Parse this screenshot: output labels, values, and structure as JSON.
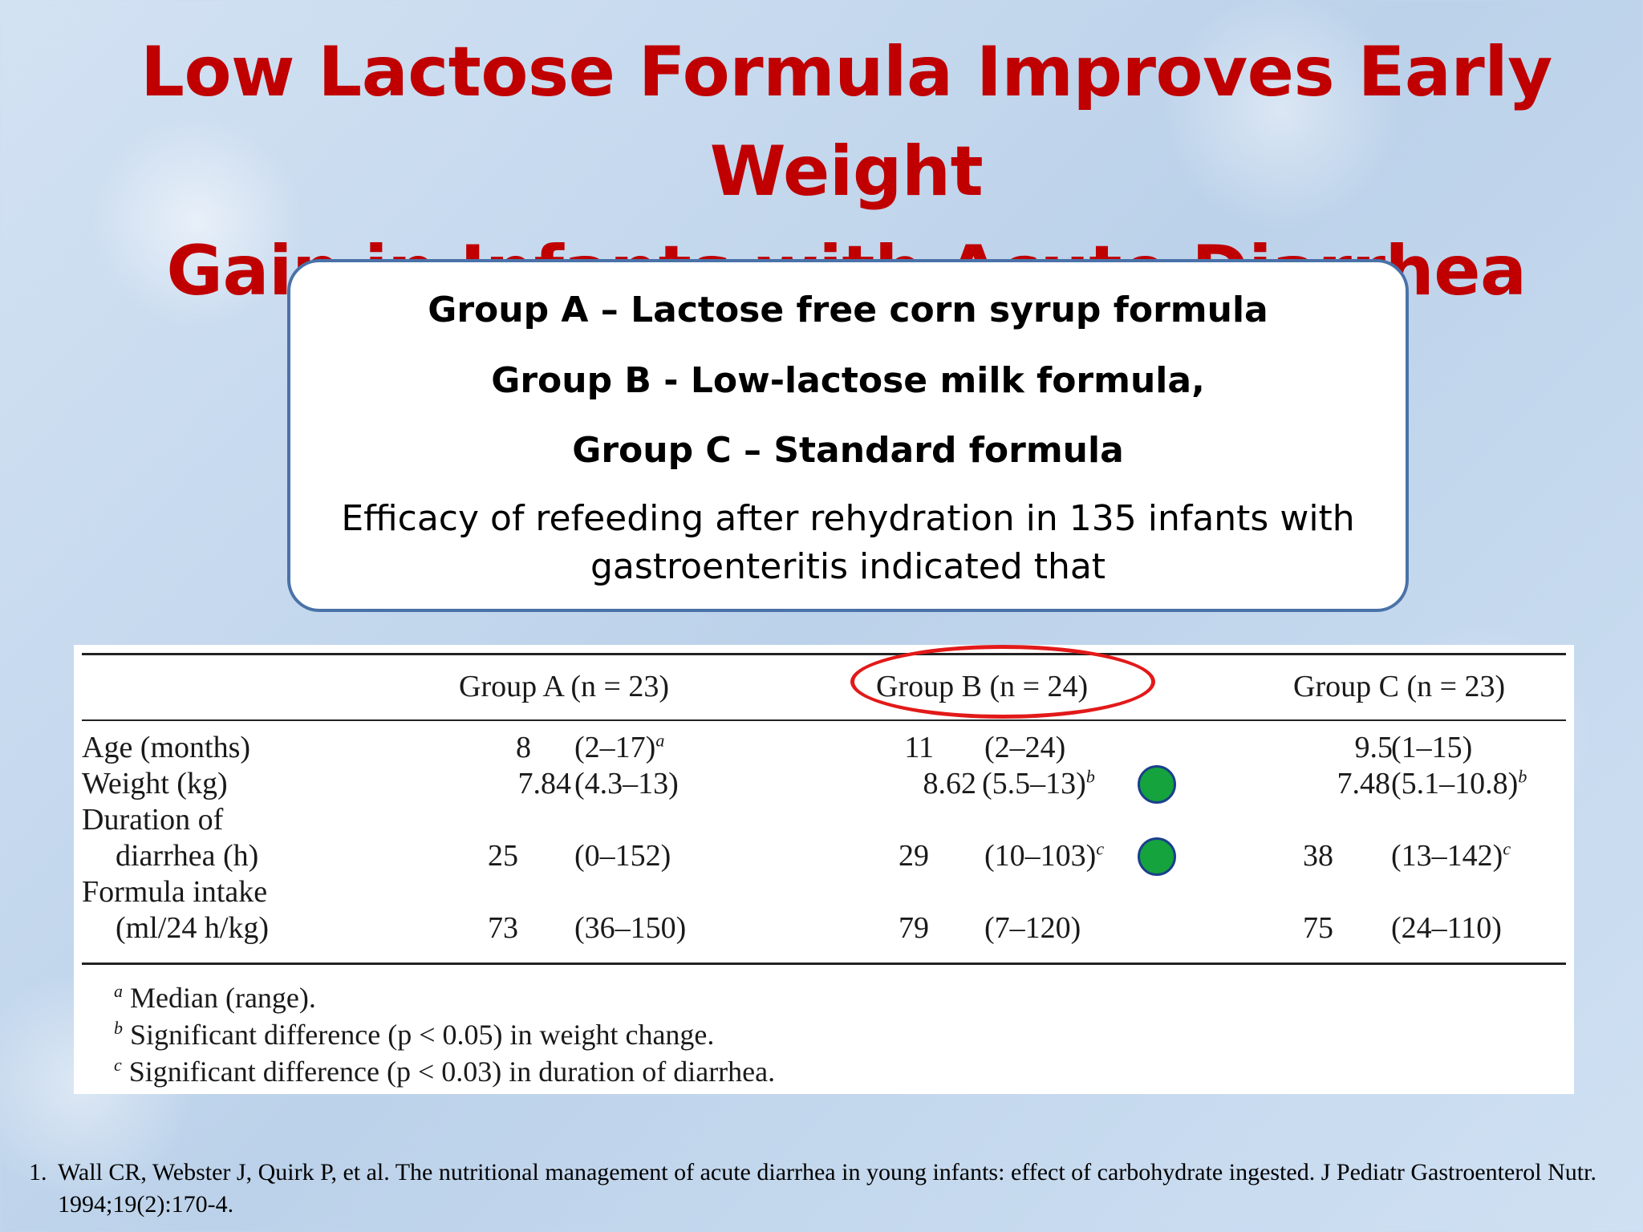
{
  "title": {
    "line1": "Low Lactose Formula Improves Early Weight",
    "line2": "Gain in Infants with Acute Diarrhea"
  },
  "info_box": {
    "group_a": "Group A – Lactose free corn syrup formula",
    "group_b": "Group B - Low-lactose milk formula,",
    "group_c": "Group C – Standard formula",
    "description": "Efficacy of refeeding after rehydration in 135 infants with gastroenteritis indicated that"
  },
  "table": {
    "headers": {
      "group_a": "Group A (n = 23)",
      "group_b": "Group B (n = 24)",
      "group_c": "Group C (n = 23)"
    },
    "rows": {
      "age": {
        "label": "Age (months)",
        "a_val": "8",
        "a_range": "(2–17)",
        "a_sup": "a",
        "b_val": "11",
        "b_range": "(2–24)",
        "b_sup": "",
        "c_val": "9.5",
        "c_range": "(1–15)",
        "c_sup": ""
      },
      "weight": {
        "label": "Weight (kg)",
        "a_val": "7.84",
        "a_range": "(4.3–13)",
        "a_sup": "",
        "b_val": "8.62",
        "b_range": "(5.5–13)",
        "b_sup": "b",
        "c_val": "7.48",
        "c_range": "(5.1–10.8)",
        "c_sup": "b"
      },
      "duration": {
        "label1": "Duration of",
        "label2": "diarrhea (h)",
        "a_val": "25",
        "a_range": "(0–152)",
        "a_sup": "",
        "b_val": "29",
        "b_range": "(10–103)",
        "b_sup": "c",
        "c_val": "38",
        "c_range": "(13–142)",
        "c_sup": "c"
      },
      "intake": {
        "label1": "Formula intake",
        "label2": "(ml/24 h/kg)",
        "a_val": "73",
        "a_range": "(36–150)",
        "a_sup": "",
        "b_val": "79",
        "b_range": "(7–120)",
        "b_sup": "",
        "c_val": "75",
        "c_range": "(24–110)",
        "c_sup": ""
      }
    },
    "footnotes": [
      {
        "mark": "a",
        "text": "Median (range)."
      },
      {
        "mark": "b",
        "text": "Significant difference (p < 0.05) in weight change."
      },
      {
        "mark": "c",
        "text": "Significant difference (p < 0.03) in duration of diarrhea."
      }
    ]
  },
  "highlight_colors": {
    "ellipse": "#e31919",
    "dot_fill": "#15a33e",
    "dot_border": "#1b3f8c",
    "title": "#c00000"
  },
  "citation": {
    "number": "1.",
    "text": "Wall CR, Webster J, Quirk P, et al. The nutritional management of acute diarrhea in young infants: effect of carbohydrate ingested. J Pediatr Gastroenterol Nutr. 1994;19(2):170-4."
  }
}
